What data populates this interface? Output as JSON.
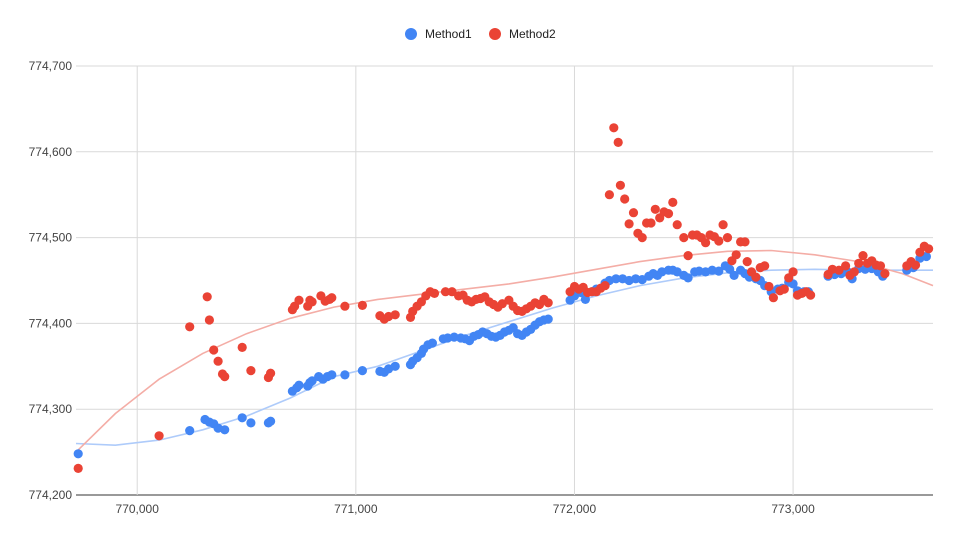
{
  "chart_data": {
    "type": "scatter",
    "legend_position": "top",
    "grid": true,
    "xlim": [
      769720,
      773640
    ],
    "ylim": [
      774200,
      774700
    ],
    "x_ticks": [
      770000,
      771000,
      772000,
      773000
    ],
    "x_tick_labels": [
      "770,000",
      "771,000",
      "772,000",
      "773,000"
    ],
    "y_ticks": [
      774200,
      774300,
      774400,
      774500,
      774600,
      774700
    ],
    "y_tick_labels": [
      "774,200",
      "774,300",
      "774,400",
      "774,500",
      "774,600",
      "774,700"
    ],
    "series": [
      {
        "name": "Method1",
        "color": "#4285F4",
        "trend_color": "#AECBFA",
        "trendline": [
          [
            769720,
            774260
          ],
          [
            769900,
            774258
          ],
          [
            770100,
            774264
          ],
          [
            770300,
            774276
          ],
          [
            770500,
            774292
          ],
          [
            770700,
            774313
          ],
          [
            770900,
            774338
          ],
          [
            771100,
            774350
          ],
          [
            771300,
            774368
          ],
          [
            771500,
            774386
          ],
          [
            771700,
            774402
          ],
          [
            771900,
            774418
          ],
          [
            772100,
            774432
          ],
          [
            772300,
            774444
          ],
          [
            772500,
            774453
          ],
          [
            772700,
            774459
          ],
          [
            772900,
            774462
          ],
          [
            773100,
            774463
          ],
          [
            773300,
            774462
          ],
          [
            773500,
            774462
          ],
          [
            773640,
            774462
          ]
        ],
        "points": [
          [
            769730,
            774248
          ],
          [
            770240,
            774275
          ],
          [
            770310,
            774288
          ],
          [
            770330,
            774285
          ],
          [
            770350,
            774283
          ],
          [
            770370,
            774278
          ],
          [
            770400,
            774276
          ],
          [
            770480,
            774290
          ],
          [
            770520,
            774284
          ],
          [
            770600,
            774284
          ],
          [
            770610,
            774286
          ],
          [
            770710,
            774321
          ],
          [
            770730,
            774325
          ],
          [
            770740,
            774328
          ],
          [
            770780,
            774327
          ],
          [
            770790,
            774331
          ],
          [
            770800,
            774333
          ],
          [
            770830,
            774338
          ],
          [
            770850,
            774335
          ],
          [
            770870,
            774338
          ],
          [
            770890,
            774340
          ],
          [
            770950,
            774340
          ],
          [
            771030,
            774345
          ],
          [
            771110,
            774344
          ],
          [
            771130,
            774343
          ],
          [
            771150,
            774347
          ],
          [
            771180,
            774350
          ],
          [
            771250,
            774352
          ],
          [
            771260,
            774356
          ],
          [
            771280,
            774360
          ],
          [
            771300,
            774365
          ],
          [
            771310,
            774370
          ],
          [
            771330,
            774375
          ],
          [
            771350,
            774377
          ],
          [
            771400,
            774382
          ],
          [
            771420,
            774383
          ],
          [
            771450,
            774384
          ],
          [
            771480,
            774383
          ],
          [
            771500,
            774382
          ],
          [
            771520,
            774380
          ],
          [
            771540,
            774385
          ],
          [
            771560,
            774387
          ],
          [
            771580,
            774390
          ],
          [
            771600,
            774388
          ],
          [
            771620,
            774385
          ],
          [
            771640,
            774384
          ],
          [
            771660,
            774386
          ],
          [
            771680,
            774390
          ],
          [
            771700,
            774392
          ],
          [
            771720,
            774395
          ],
          [
            771740,
            774388
          ],
          [
            771760,
            774386
          ],
          [
            771780,
            774390
          ],
          [
            771800,
            774393
          ],
          [
            771820,
            774398
          ],
          [
            771840,
            774402
          ],
          [
            771860,
            774404
          ],
          [
            771880,
            774405
          ],
          [
            771980,
            774427
          ],
          [
            772000,
            774432
          ],
          [
            772030,
            774436
          ],
          [
            772050,
            774428
          ],
          [
            772080,
            774437
          ],
          [
            772100,
            774440
          ],
          [
            772140,
            774447
          ],
          [
            772160,
            774450
          ],
          [
            772190,
            774452
          ],
          [
            772220,
            774452
          ],
          [
            772250,
            774450
          ],
          [
            772280,
            774452
          ],
          [
            772310,
            774451
          ],
          [
            772340,
            774455
          ],
          [
            772360,
            774458
          ],
          [
            772380,
            774456
          ],
          [
            772400,
            774460
          ],
          [
            772430,
            774462
          ],
          [
            772450,
            774462
          ],
          [
            772470,
            774460
          ],
          [
            772500,
            774456
          ],
          [
            772520,
            774453
          ],
          [
            772550,
            774460
          ],
          [
            772570,
            774461
          ],
          [
            772600,
            774460
          ],
          [
            772630,
            774462
          ],
          [
            772660,
            774461
          ],
          [
            772690,
            774467
          ],
          [
            772710,
            774463
          ],
          [
            772730,
            774456
          ],
          [
            772760,
            774462
          ],
          [
            772780,
            774458
          ],
          [
            772800,
            774454
          ],
          [
            772830,
            774452
          ],
          [
            772850,
            774450
          ],
          [
            772870,
            774444
          ],
          [
            772900,
            774437
          ],
          [
            772930,
            774440
          ],
          [
            772950,
            774441
          ],
          [
            772980,
            774448
          ],
          [
            773000,
            774446
          ],
          [
            773020,
            774438
          ],
          [
            773050,
            774437
          ],
          [
            773070,
            774437
          ],
          [
            773160,
            774455
          ],
          [
            773190,
            774457
          ],
          [
            773220,
            774458
          ],
          [
            773250,
            774460
          ],
          [
            773270,
            774452
          ],
          [
            773300,
            774464
          ],
          [
            773330,
            774463
          ],
          [
            773360,
            774464
          ],
          [
            773390,
            774460
          ],
          [
            773410,
            774455
          ],
          [
            773520,
            774462
          ],
          [
            773550,
            774465
          ],
          [
            773580,
            774476
          ],
          [
            773610,
            774478
          ]
        ]
      },
      {
        "name": "Method2",
        "color": "#EA4335",
        "trend_color": "#F4ADA6",
        "trendline": [
          [
            769720,
            774250
          ],
          [
            769900,
            774295
          ],
          [
            770100,
            774335
          ],
          [
            770300,
            774365
          ],
          [
            770500,
            774388
          ],
          [
            770700,
            774406
          ],
          [
            770900,
            774419
          ],
          [
            771100,
            774428
          ],
          [
            771300,
            774434
          ],
          [
            771500,
            774440
          ],
          [
            771700,
            774446
          ],
          [
            771900,
            774454
          ],
          [
            772100,
            774463
          ],
          [
            772300,
            774472
          ],
          [
            772500,
            774479
          ],
          [
            772700,
            774484
          ],
          [
            772900,
            774485
          ],
          [
            773100,
            774480
          ],
          [
            773300,
            774472
          ],
          [
            773500,
            774458
          ],
          [
            773640,
            774444
          ]
        ],
        "points": [
          [
            769730,
            774231
          ],
          [
            770100,
            774269
          ],
          [
            770240,
            774396
          ],
          [
            770320,
            774431
          ],
          [
            770330,
            774404
          ],
          [
            770350,
            774369
          ],
          [
            770370,
            774356
          ],
          [
            770390,
            774341
          ],
          [
            770400,
            774338
          ],
          [
            770480,
            774372
          ],
          [
            770520,
            774345
          ],
          [
            770600,
            774337
          ],
          [
            770610,
            774342
          ],
          [
            770710,
            774416
          ],
          [
            770720,
            774420
          ],
          [
            770740,
            774427
          ],
          [
            770780,
            774420
          ],
          [
            770790,
            774427
          ],
          [
            770800,
            774425
          ],
          [
            770840,
            774432
          ],
          [
            770860,
            774426
          ],
          [
            770880,
            774428
          ],
          [
            770890,
            774430
          ],
          [
            770950,
            774420
          ],
          [
            771030,
            774421
          ],
          [
            771110,
            774409
          ],
          [
            771130,
            774405
          ],
          [
            771150,
            774408
          ],
          [
            771180,
            774410
          ],
          [
            771250,
            774407
          ],
          [
            771260,
            774414
          ],
          [
            771280,
            774420
          ],
          [
            771300,
            774425
          ],
          [
            771320,
            774432
          ],
          [
            771340,
            774437
          ],
          [
            771360,
            774435
          ],
          [
            771410,
            774437
          ],
          [
            771440,
            774437
          ],
          [
            771470,
            774432
          ],
          [
            771490,
            774433
          ],
          [
            771510,
            774427
          ],
          [
            771530,
            774425
          ],
          [
            771550,
            774428
          ],
          [
            771570,
            774429
          ],
          [
            771590,
            774431
          ],
          [
            771610,
            774425
          ],
          [
            771630,
            774422
          ],
          [
            771650,
            774419
          ],
          [
            771670,
            774423
          ],
          [
            771700,
            774427
          ],
          [
            771720,
            774420
          ],
          [
            771740,
            774415
          ],
          [
            771760,
            774414
          ],
          [
            771780,
            774417
          ],
          [
            771800,
            774420
          ],
          [
            771820,
            774424
          ],
          [
            771840,
            774422
          ],
          [
            771860,
            774428
          ],
          [
            771880,
            774424
          ],
          [
            771980,
            774437
          ],
          [
            772000,
            774443
          ],
          [
            772020,
            774440
          ],
          [
            772040,
            774442
          ],
          [
            772060,
            774436
          ],
          [
            772080,
            774437
          ],
          [
            772100,
            774437
          ],
          [
            772120,
            774441
          ],
          [
            772140,
            774444
          ],
          [
            772160,
            774550
          ],
          [
            772180,
            774628
          ],
          [
            772200,
            774611
          ],
          [
            772210,
            774561
          ],
          [
            772230,
            774545
          ],
          [
            772250,
            774516
          ],
          [
            772270,
            774529
          ],
          [
            772290,
            774505
          ],
          [
            772310,
            774500
          ],
          [
            772330,
            774517
          ],
          [
            772350,
            774517
          ],
          [
            772370,
            774533
          ],
          [
            772390,
            774523
          ],
          [
            772410,
            774530
          ],
          [
            772430,
            774528
          ],
          [
            772450,
            774541
          ],
          [
            772470,
            774515
          ],
          [
            772500,
            774500
          ],
          [
            772520,
            774479
          ],
          [
            772540,
            774503
          ],
          [
            772560,
            774503
          ],
          [
            772580,
            774500
          ],
          [
            772600,
            774494
          ],
          [
            772620,
            774503
          ],
          [
            772640,
            774501
          ],
          [
            772660,
            774496
          ],
          [
            772680,
            774515
          ],
          [
            772700,
            774500
          ],
          [
            772720,
            774473
          ],
          [
            772740,
            774480
          ],
          [
            772760,
            774495
          ],
          [
            772780,
            774495
          ],
          [
            772790,
            774472
          ],
          [
            772810,
            774460
          ],
          [
            772830,
            774454
          ],
          [
            772850,
            774465
          ],
          [
            772870,
            774467
          ],
          [
            772890,
            774443
          ],
          [
            772910,
            774430
          ],
          [
            772940,
            774438
          ],
          [
            772960,
            774440
          ],
          [
            772980,
            774453
          ],
          [
            773000,
            774460
          ],
          [
            773020,
            774433
          ],
          [
            773040,
            774435
          ],
          [
            773060,
            774437
          ],
          [
            773080,
            774433
          ],
          [
            773160,
            774457
          ],
          [
            773180,
            774463
          ],
          [
            773210,
            774462
          ],
          [
            773240,
            774467
          ],
          [
            773260,
            774456
          ],
          [
            773280,
            774460
          ],
          [
            773300,
            774470
          ],
          [
            773320,
            774479
          ],
          [
            773340,
            774470
          ],
          [
            773360,
            774473
          ],
          [
            773380,
            774468
          ],
          [
            773400,
            774467
          ],
          [
            773420,
            774458
          ],
          [
            773520,
            774467
          ],
          [
            773540,
            774472
          ],
          [
            773560,
            774468
          ],
          [
            773580,
            774483
          ],
          [
            773600,
            774490
          ],
          [
            773620,
            774487
          ]
        ]
      }
    ]
  }
}
